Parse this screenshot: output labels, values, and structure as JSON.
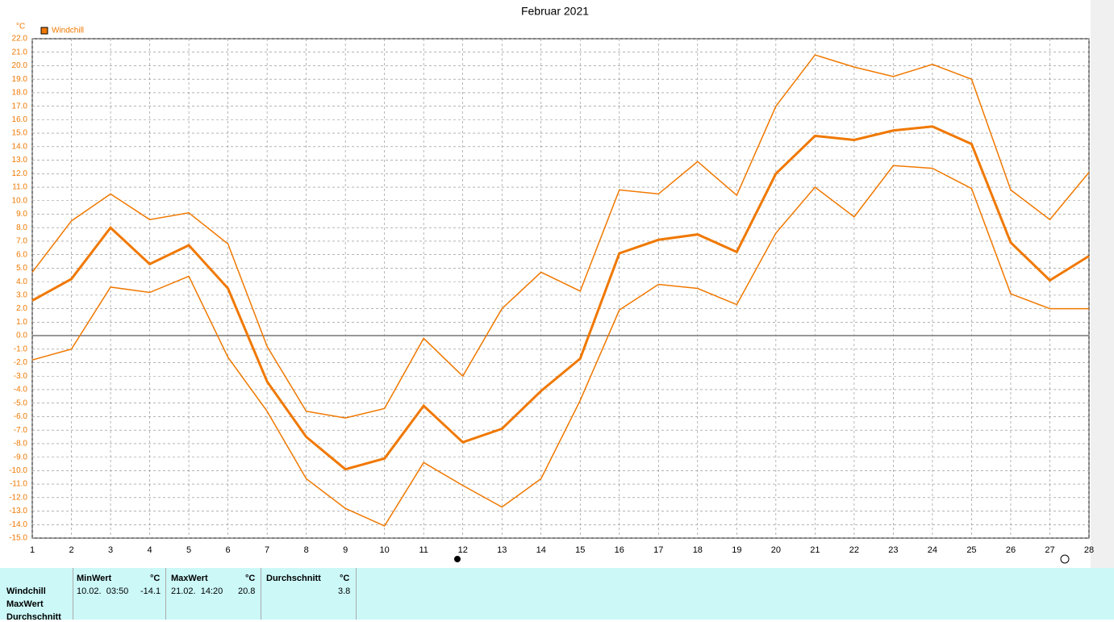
{
  "chart_data": {
    "type": "line",
    "title": "Februar 2021",
    "y_unit": "°C",
    "legend": "Windchill",
    "legend_color": "#f07800",
    "x": [
      1,
      2,
      3,
      4,
      5,
      6,
      7,
      8,
      9,
      10,
      11,
      12,
      13,
      14,
      15,
      16,
      17,
      18,
      19,
      20,
      21,
      22,
      23,
      24,
      25,
      26,
      27,
      28
    ],
    "xlim": [
      1,
      28
    ],
    "ylim": [
      -15,
      22
    ],
    "grid": true,
    "yticks": [
      {
        "value": -15,
        "label": "-15.0"
      },
      {
        "value": -14,
        "label": "-14.0"
      },
      {
        "value": -13,
        "label": "-13.0"
      },
      {
        "value": -12,
        "label": "-12.0"
      },
      {
        "value": -11,
        "label": "-11.0"
      },
      {
        "value": -10,
        "label": "-10.0"
      },
      {
        "value": -9,
        "label": "-9.0"
      },
      {
        "value": -8,
        "label": "-8.0"
      },
      {
        "value": -7,
        "label": "-7.0"
      },
      {
        "value": -6,
        "label": "-6.0"
      },
      {
        "value": -5,
        "label": "-5.0"
      },
      {
        "value": -4,
        "label": "-4.0"
      },
      {
        "value": -3,
        "label": "-3.0"
      },
      {
        "value": -2,
        "label": "-2.0"
      },
      {
        "value": -1,
        "label": "-1.0"
      },
      {
        "value": 0,
        "label": "0.0"
      },
      {
        "value": 1,
        "label": "1.0"
      },
      {
        "value": 2,
        "label": "2.0"
      },
      {
        "value": 3,
        "label": "3.0"
      },
      {
        "value": 4,
        "label": "4.0"
      },
      {
        "value": 5,
        "label": "5.0"
      },
      {
        "value": 6,
        "label": "6.0"
      },
      {
        "value": 7,
        "label": "7.0"
      },
      {
        "value": 8,
        "label": "8.0"
      },
      {
        "value": 9,
        "label": "9.0"
      },
      {
        "value": 10,
        "label": "10.0"
      },
      {
        "value": 11,
        "label": "11.0"
      },
      {
        "value": 12,
        "label": "12.0"
      },
      {
        "value": 13,
        "label": "13.0"
      },
      {
        "value": 14,
        "label": "14.0"
      },
      {
        "value": 15,
        "label": "15.0"
      },
      {
        "value": 16,
        "label": "16.0"
      },
      {
        "value": 17,
        "label": "17.0"
      },
      {
        "value": 18,
        "label": "18.0"
      },
      {
        "value": 19,
        "label": "19.0"
      },
      {
        "value": 20,
        "label": "20.0"
      },
      {
        "value": 21,
        "label": "21.0"
      },
      {
        "value": 22,
        "label": "22.0"
      }
    ],
    "series": [
      {
        "color": "#f07800",
        "width": 1.5,
        "values": [
          4.7,
          8.5,
          10.5,
          8.6,
          9.1,
          6.8,
          -0.8,
          -5.6,
          -6.1,
          -5.4,
          -0.2,
          -3.0,
          2.0,
          4.7,
          3.3,
          10.8,
          10.5,
          12.9,
          10.4,
          17.0,
          20.8,
          19.9,
          19.2,
          20.1,
          19.0,
          10.8,
          8.6,
          12.1
        ]
      },
      {
        "color": "#f07800",
        "width": 3,
        "values": [
          2.6,
          4.2,
          8.0,
          5.3,
          6.7,
          3.5,
          -3.4,
          -7.5,
          -9.9,
          -9.1,
          -5.2,
          -7.9,
          -6.9,
          -4.1,
          -1.7,
          6.1,
          7.1,
          7.5,
          6.2,
          12.0,
          14.8,
          14.5,
          15.2,
          15.5,
          14.2,
          6.9,
          4.1,
          5.9
        ]
      },
      {
        "color": "#f07800",
        "width": 1.5,
        "values": [
          -1.8,
          -1.0,
          3.6,
          3.2,
          4.4,
          -1.6,
          -5.6,
          -10.6,
          -12.8,
          -14.1,
          -9.4,
          -11.1,
          -12.7,
          -10.6,
          -4.8,
          1.9,
          3.8,
          3.5,
          2.3,
          7.6,
          11.0,
          8.8,
          12.6,
          12.4,
          10.9,
          3.1,
          2.0,
          2.0
        ]
      }
    ]
  },
  "table": {
    "row_labels": [
      "Windchill",
      "MaxWert",
      "Durchschnitt"
    ],
    "headers": [
      "MinWert",
      "°C",
      "MaxWert",
      "°C",
      "Durchschnitt",
      "°C"
    ],
    "row": [
      "10.02.  03:50",
      "-14.1",
      "21.02.  14:20",
      "20.8",
      "3.8"
    ]
  }
}
